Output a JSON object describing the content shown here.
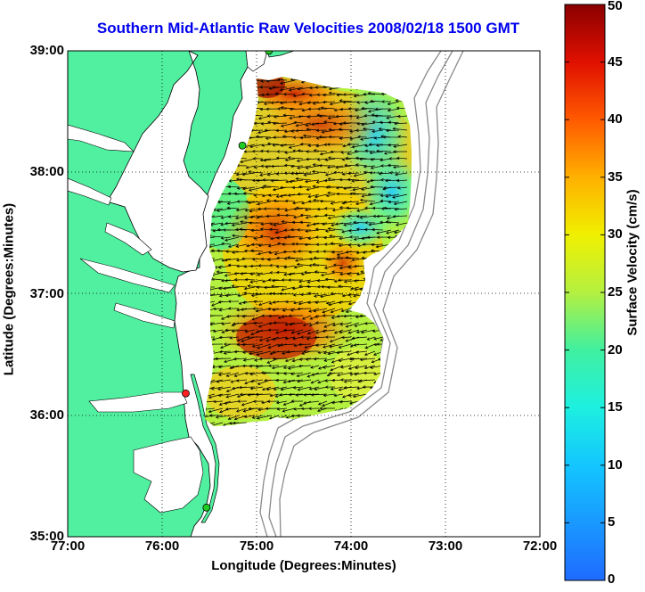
{
  "title": "Southern Mid-Atlantic Raw Velocities 2008/02/18 1500 GMT",
  "xlabel": "Longitude (Degrees:Minutes)",
  "ylabel": "Latitude (Degrees:Minutes)",
  "colorbar_label": "Surface Velocity (cm/s)",
  "x_ticks": [
    "77:00",
    "76:00",
    "75:00",
    "74:00",
    "73:00",
    "72:00"
  ],
  "y_ticks": [
    "39:00",
    "38:00",
    "37:00",
    "36:00",
    "35:00"
  ],
  "colorbar_ticks": [
    "50",
    "45",
    "40",
    "35",
    "30",
    "25",
    "20",
    "15",
    "10",
    "5",
    "0"
  ],
  "colors": {
    "land": "#50f0a0",
    "coastline": "#000000",
    "bathymetry": "#8a8a8a",
    "grid": "#000000",
    "title": "#0000ee"
  },
  "map": {
    "lon_range": [
      -77,
      -72
    ],
    "lat_range": [
      35,
      39
    ],
    "grid": "dotted",
    "colormap": "jet",
    "color_range_cm_s": [
      0,
      50
    ]
  },
  "stations": [
    {
      "lon": -74.87,
      "lat": 39.0,
      "color": "#22cc22"
    },
    {
      "lon": -75.15,
      "lat": 38.22,
      "color": "#22cc22"
    },
    {
      "lon": -75.75,
      "lat": 36.18,
      "color": "#ff2020"
    },
    {
      "lon": -75.53,
      "lat": 35.24,
      "color": "#22cc22"
    }
  ],
  "chart_data": {
    "type": "heatmap",
    "title": "Southern Mid-Atlantic Raw Velocities 2008/02/18 1500 GMT",
    "xlabel": "Longitude (Degrees:Minutes)",
    "ylabel": "Latitude (Degrees:Minutes)",
    "xlim": [
      -77,
      -72
    ],
    "ylim": [
      35,
      39
    ],
    "colorbar": {
      "label": "Surface Velocity (cm/s)",
      "min": 0,
      "max": 50
    },
    "velocity_hotspots_cm_s": [
      {
        "lon": -74.75,
        "lat": 38.65,
        "speed": 45
      },
      {
        "lon": -74.45,
        "lat": 38.25,
        "speed": 35
      },
      {
        "lon": -74.9,
        "lat": 37.5,
        "speed": 32
      },
      {
        "lon": -74.8,
        "lat": 36.7,
        "speed": 45
      },
      {
        "lon": -74.05,
        "lat": 37.9,
        "speed": 13
      },
      {
        "lon": -73.85,
        "lat": 38.1,
        "speed": 10
      },
      {
        "lon": -75.1,
        "lat": 36.05,
        "speed": 28
      }
    ],
    "flow_direction": "predominantly westward to west-southwestward"
  }
}
